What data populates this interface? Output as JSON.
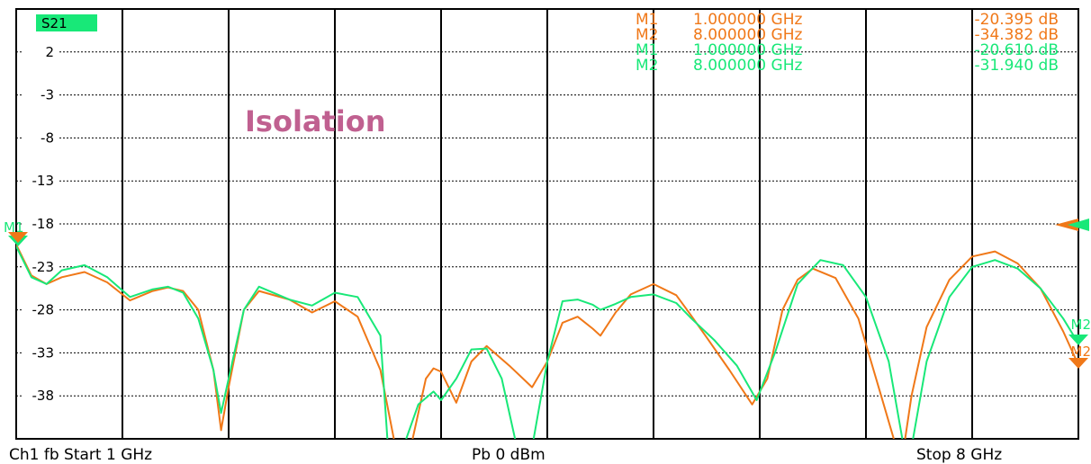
{
  "trace_label": "S21",
  "annotation": "Isolation",
  "colors": {
    "series1": "#f07818",
    "series2": "#18e878",
    "label_bg": "#18e878",
    "annotation": "#c06090",
    "grid": "#000000"
  },
  "markers": [
    {
      "name": "M1",
      "freq": "1.000000 GHz",
      "value": "-20.395 dB",
      "series": "series1"
    },
    {
      "name": "M2",
      "freq": "8.000000 GHz",
      "value": "-34.382 dB",
      "series": "series1"
    },
    {
      "name": "M1",
      "freq": "1.000000 GHz",
      "value": "-20.610 dB",
      "series": "series2"
    },
    {
      "name": "M2",
      "freq": "8.000000 GHz",
      "value": "-31.940 dB",
      "series": "series2"
    }
  ],
  "footer": {
    "left": "Ch1  fb  Start  1 GHz",
    "center": "Pb    0 dBm",
    "right": "Stop  8 GHz"
  },
  "chart_data": {
    "type": "line",
    "title": "S21",
    "xlabel": "",
    "ylabel": "",
    "xlim": [
      1,
      8
    ],
    "ylim": [
      -43,
      7
    ],
    "yticks": [
      2,
      -3,
      -8,
      -13,
      -18,
      -23,
      -28,
      -33,
      -38
    ],
    "ytick_labels": [
      "2",
      "-3",
      "-8",
      "-13",
      "-18",
      "-23",
      "-28",
      "-33",
      "-38"
    ],
    "grid": true,
    "series": [
      {
        "x": [
          1.0,
          1.1,
          1.2,
          1.3,
          1.45,
          1.6,
          1.75,
          1.9,
          2.0,
          2.1,
          2.2,
          2.3,
          2.35,
          2.4,
          2.5,
          2.6,
          2.8,
          2.95,
          3.1,
          3.25,
          3.4,
          3.5,
          3.6,
          3.7,
          3.75,
          3.8,
          3.9,
          4.0,
          4.1,
          4.25,
          4.4,
          4.5,
          4.6,
          4.7,
          4.8,
          4.85,
          4.95,
          5.05,
          5.2,
          5.35,
          5.45,
          5.55,
          5.7,
          5.85,
          5.95,
          6.05,
          6.15,
          6.25,
          6.4,
          6.55,
          6.7,
          6.8,
          6.85,
          6.9,
          7.0,
          7.15,
          7.3,
          7.45,
          7.6,
          7.75,
          7.9,
          8.0
        ],
        "y": [
          -20.4,
          -24.0,
          -25.0,
          -24.2,
          -23.6,
          -24.8,
          -26.9,
          -25.8,
          -25.4,
          -25.8,
          -28.0,
          -35.0,
          -42.0,
          -37.0,
          -28.0,
          -25.8,
          -26.8,
          -28.3,
          -27.0,
          -28.8,
          -35.0,
          -44.0,
          -44.0,
          -36.0,
          -34.8,
          -35.2,
          -38.8,
          -34.0,
          -32.2,
          -34.5,
          -37.0,
          -34.0,
          -29.5,
          -28.8,
          -30.2,
          -31.0,
          -28.3,
          -26.2,
          -25.0,
          -26.3,
          -28.7,
          -31.2,
          -35.0,
          -39.0,
          -36.0,
          -28.0,
          -24.5,
          -23.2,
          -24.3,
          -29.0,
          -38.0,
          -44.0,
          -44.0,
          -38.0,
          -30.0,
          -24.5,
          -21.8,
          -21.2,
          -22.6,
          -25.5,
          -30.5,
          -34.4
        ]
      },
      {
        "x": [
          1.0,
          1.1,
          1.2,
          1.3,
          1.45,
          1.6,
          1.75,
          1.9,
          2.0,
          2.1,
          2.2,
          2.3,
          2.35,
          2.4,
          2.5,
          2.6,
          2.8,
          2.95,
          3.1,
          3.25,
          3.4,
          3.45,
          3.55,
          3.65,
          3.75,
          3.8,
          3.9,
          4.0,
          4.1,
          4.2,
          4.3,
          4.4,
          4.5,
          4.6,
          4.7,
          4.8,
          4.85,
          4.95,
          5.05,
          5.2,
          5.35,
          5.45,
          5.6,
          5.75,
          5.88,
          6.0,
          6.15,
          6.3,
          6.45,
          6.6,
          6.75,
          6.85,
          6.9,
          7.0,
          7.15,
          7.3,
          7.45,
          7.6,
          7.75,
          7.9,
          8.0
        ],
        "y": [
          -20.6,
          -24.2,
          -25.0,
          -23.4,
          -22.8,
          -24.2,
          -26.5,
          -25.6,
          -25.3,
          -26.0,
          -29.0,
          -35.0,
          -40.0,
          -36.0,
          -28.0,
          -25.3,
          -26.8,
          -27.5,
          -26.0,
          -26.5,
          -31.0,
          -44.0,
          -44.0,
          -39.0,
          -37.5,
          -38.5,
          -36.0,
          -32.6,
          -32.5,
          -36.0,
          -44.0,
          -44.0,
          -34.0,
          -27.0,
          -26.8,
          -27.4,
          -28.0,
          -27.3,
          -26.5,
          -26.2,
          -27.2,
          -29.0,
          -31.5,
          -34.5,
          -38.5,
          -33.0,
          -25.0,
          -22.2,
          -22.8,
          -26.5,
          -34.0,
          -44.0,
          -44.0,
          -34.0,
          -26.5,
          -23.0,
          -22.2,
          -23.2,
          -25.5,
          -29.0,
          -31.9
        ]
      }
    ]
  }
}
